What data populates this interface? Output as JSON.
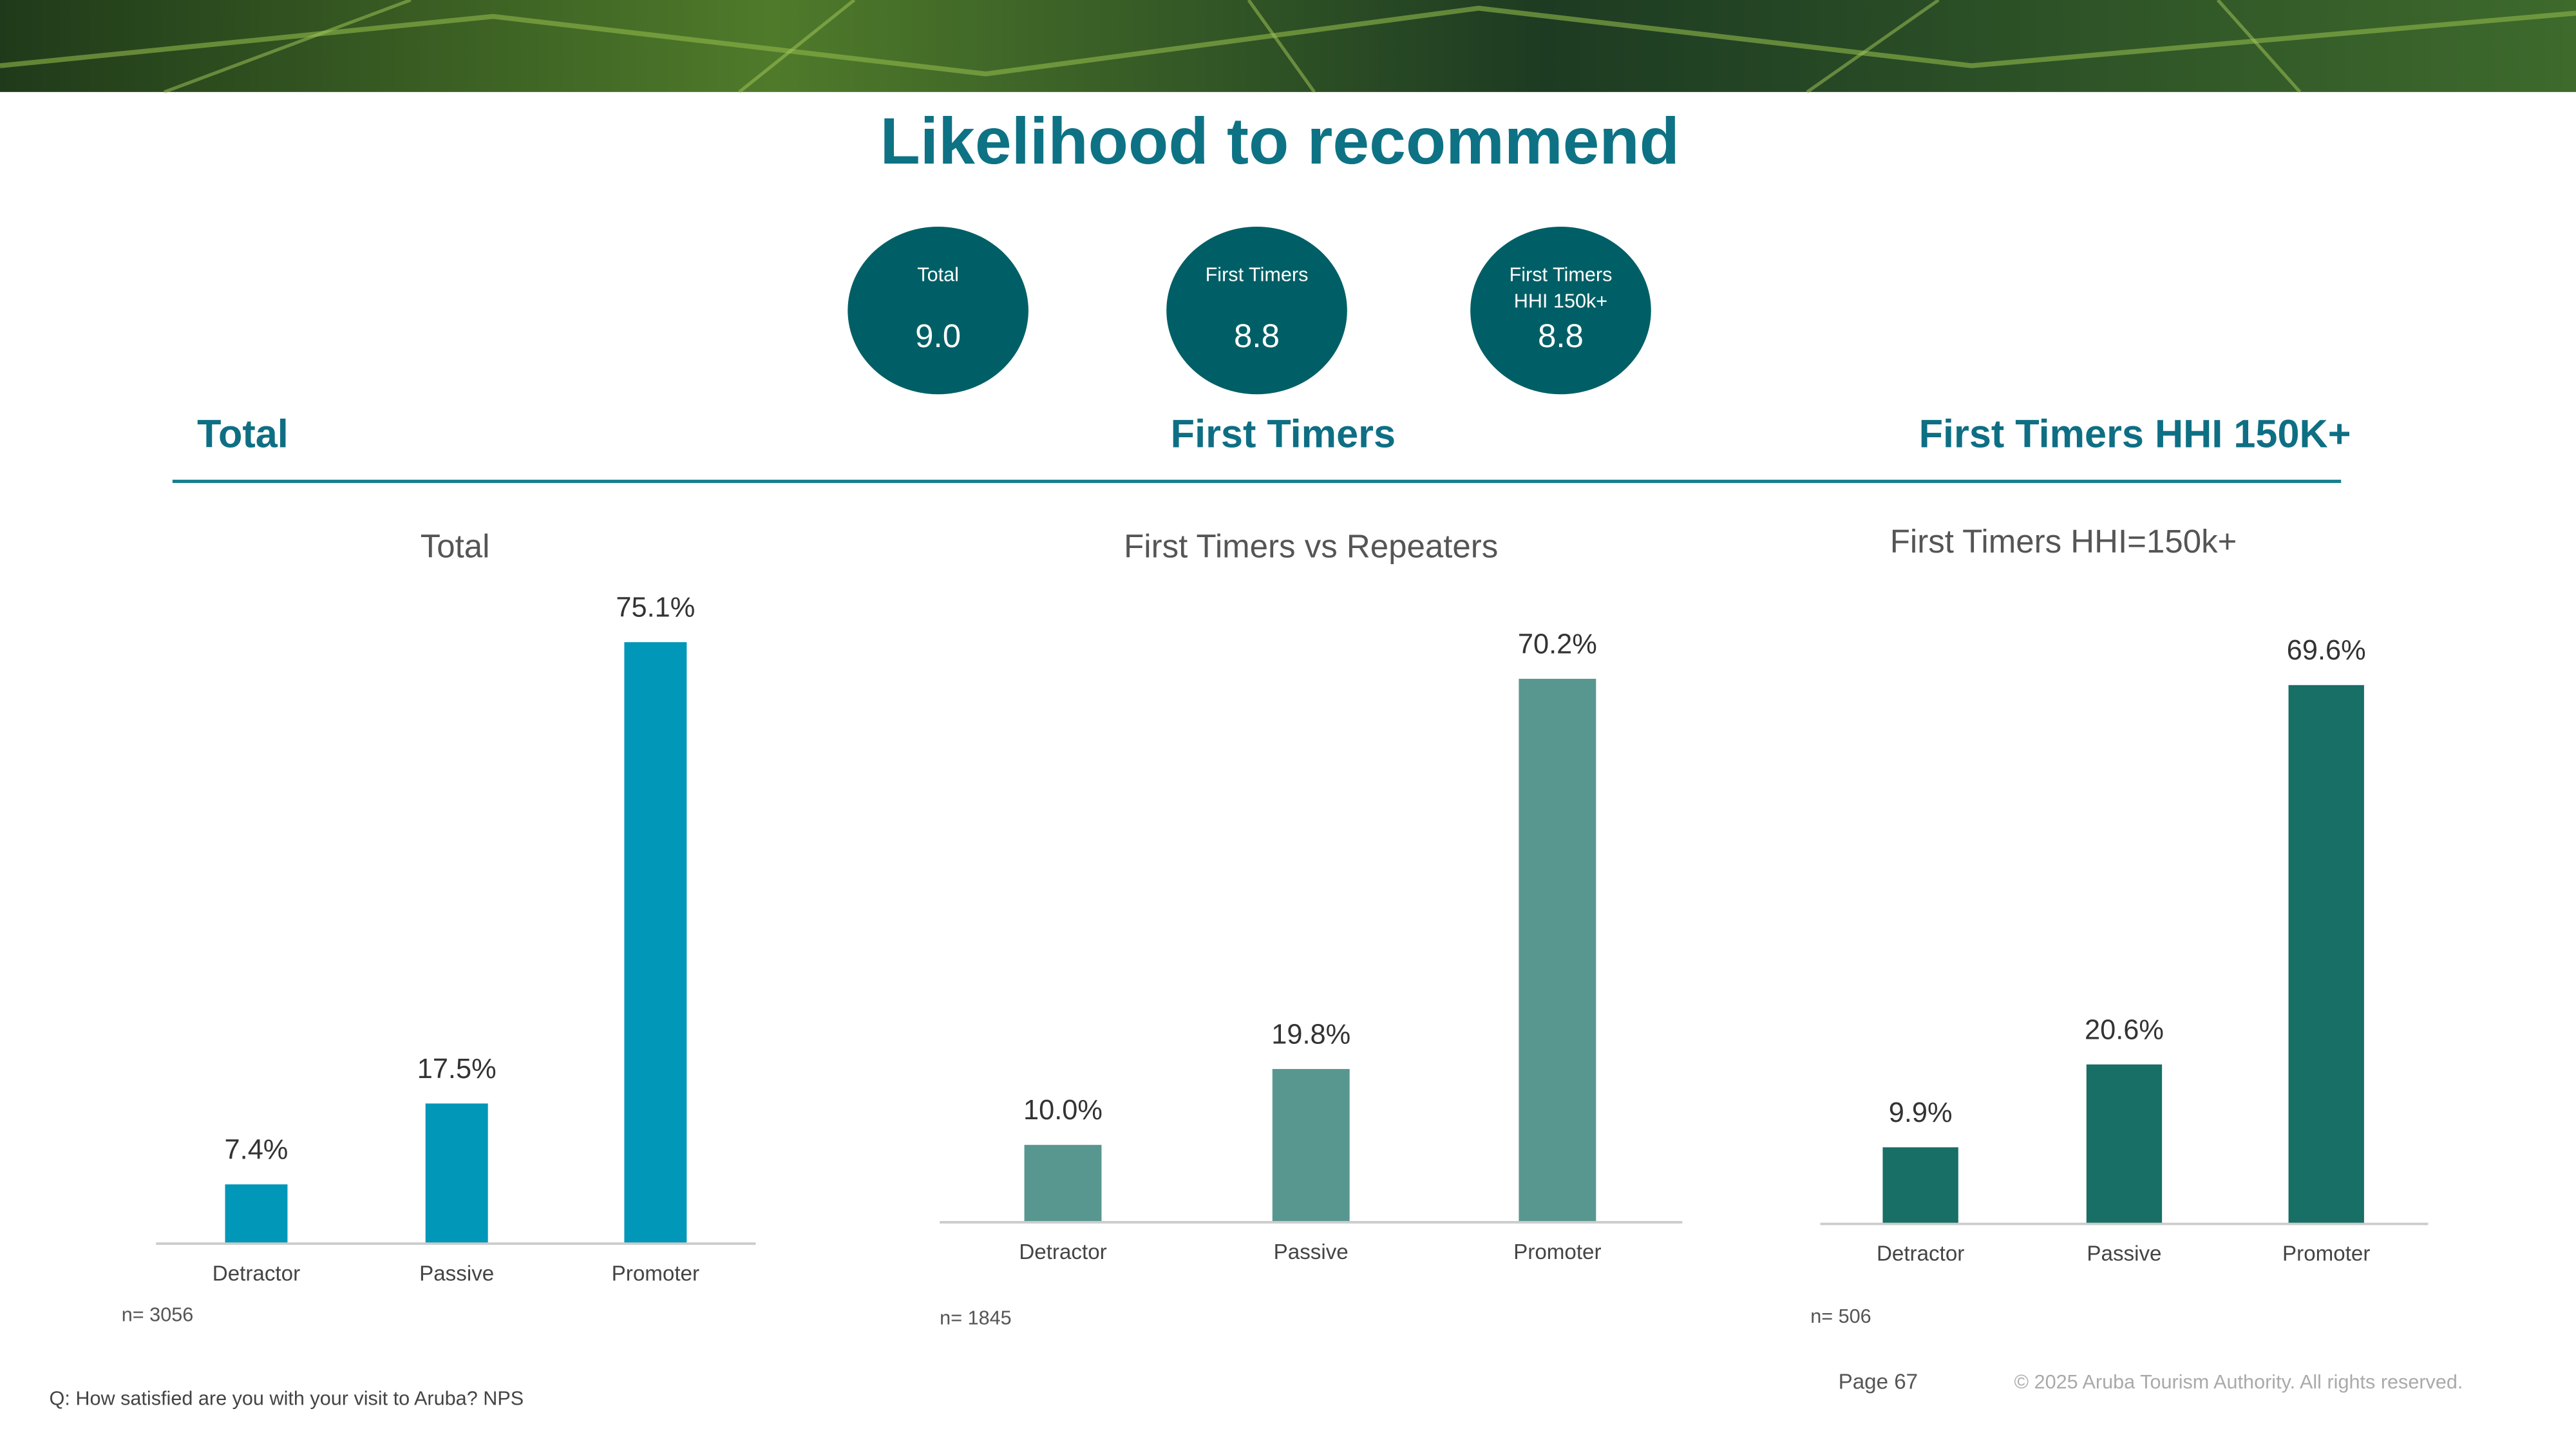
{
  "title": "Likelihood to recommend",
  "scores": [
    {
      "label": [
        "Total"
      ],
      "value": "9.0"
    },
    {
      "label": [
        "First Timers"
      ],
      "value": "8.8"
    },
    {
      "label": [
        "First Timers",
        "HHI 150k+"
      ],
      "value": "8.8"
    }
  ],
  "sections": [
    "Total",
    "First Timers",
    "First Timers HHI 150K+"
  ],
  "chart_data": [
    {
      "type": "bar",
      "title": "Total",
      "categories": [
        "Detractor",
        "Passive",
        "Promoter"
      ],
      "values": [
        7.4,
        17.5,
        75.1
      ],
      "value_labels": [
        "7.4%",
        "17.5%",
        "75.1%"
      ],
      "color": "#0097b8",
      "ylim": [
        0,
        80
      ],
      "note": "n= 3056"
    },
    {
      "type": "bar",
      "title": "First Timers vs Repeaters",
      "categories": [
        "Detractor",
        "Passive",
        "Promoter"
      ],
      "values": [
        10.0,
        19.8,
        70.2
      ],
      "value_labels": [
        "10.0%",
        "19.8%",
        "70.2%"
      ],
      "color": "#58978f",
      "ylim": [
        0,
        80
      ],
      "note": "n= 1845"
    },
    {
      "type": "bar",
      "title": "First Timers HHI=150k+",
      "categories": [
        "Detractor",
        "Passive",
        "Promoter"
      ],
      "values": [
        9.9,
        20.6,
        69.6
      ],
      "value_labels": [
        "9.9%",
        "20.6%",
        "69.6%"
      ],
      "color": "#176f66",
      "ylim": [
        0,
        80
      ],
      "note": "n= 506"
    }
  ],
  "question": "Q: How satisfied are you with your visit to Aruba? NPS",
  "page": "Page 67",
  "copyright": "© 2025 Aruba Tourism Authority. All rights reserved."
}
